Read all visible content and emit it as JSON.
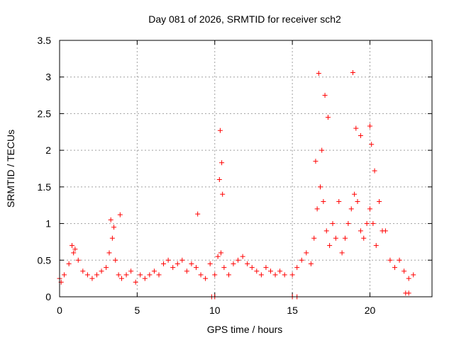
{
  "chart_data": {
    "type": "scatter",
    "title": "Day 081 of 2026, SRMTID for receiver sch2",
    "xlabel": "GPS time / hours",
    "ylabel": "SRMTID / TECUs",
    "xlim": [
      0,
      24
    ],
    "ylim": [
      0,
      3.5
    ],
    "xticks": [
      "0",
      "5",
      "10",
      "15",
      "20"
    ],
    "xtick_values": [
      0,
      5,
      10,
      15,
      20
    ],
    "yticks": [
      "0",
      "0.5",
      "1",
      "1.5",
      "2",
      "2.5",
      "3",
      "3.5"
    ],
    "ytick_values": [
      0,
      0.5,
      1,
      1.5,
      2,
      2.5,
      3,
      3.5
    ],
    "grid": true,
    "marker": "+",
    "marker_color": "#ff0000",
    "series": [
      {
        "name": "sch2",
        "x": [
          0.0,
          0.3,
          0.6,
          0.9,
          1.2,
          1.5,
          1.8,
          2.1,
          2.4,
          2.7,
          3.0,
          3.2,
          3.4,
          3.6,
          3.8,
          4.0,
          4.3,
          4.6,
          4.9,
          5.2,
          5.5,
          5.8,
          6.1,
          6.4,
          6.7,
          7.0,
          7.3,
          7.6,
          7.9,
          8.2,
          8.5,
          8.8,
          9.1,
          9.4,
          9.7,
          10.0,
          10.2,
          10.4,
          10.6,
          10.9,
          11.2,
          11.5,
          11.8,
          12.1,
          12.4,
          12.7,
          13.0,
          13.3,
          13.6,
          13.9,
          14.2,
          14.5,
          15.0,
          15.3,
          15.6,
          15.9,
          16.2,
          16.4,
          16.6,
          16.8,
          17.0,
          17.2,
          17.4,
          17.6,
          17.8,
          18.0,
          18.2,
          18.4,
          18.6,
          18.8,
          19.0,
          19.2,
          19.4,
          19.6,
          19.8,
          20.0,
          20.2,
          20.4,
          20.6,
          20.8,
          21.0,
          21.3,
          21.6,
          21.9,
          22.2,
          22.5,
          22.8,
          0.1,
          0.8,
          1.0,
          3.3,
          3.5,
          3.9,
          8.9,
          10.3,
          10.35,
          10.45,
          10.5,
          16.5,
          16.7,
          16.9,
          17.1,
          17.3,
          18.9,
          19.1,
          19.4,
          20.0,
          20.1,
          20.3,
          9.8,
          10.0,
          15.0,
          15.3,
          22.3,
          22.5
        ],
        "y": [
          0.25,
          0.3,
          0.45,
          0.6,
          0.5,
          0.35,
          0.3,
          0.25,
          0.3,
          0.35,
          0.4,
          0.6,
          0.8,
          0.5,
          0.3,
          0.25,
          0.3,
          0.35,
          0.2,
          0.3,
          0.25,
          0.3,
          0.35,
          0.3,
          0.45,
          0.5,
          0.4,
          0.45,
          0.5,
          0.35,
          0.45,
          0.4,
          0.3,
          0.25,
          0.45,
          0.3,
          0.55,
          0.6,
          0.4,
          0.3,
          0.45,
          0.5,
          0.55,
          0.45,
          0.4,
          0.35,
          0.3,
          0.4,
          0.35,
          0.3,
          0.35,
          0.3,
          0.3,
          0.4,
          0.5,
          0.6,
          0.45,
          0.8,
          1.2,
          1.5,
          1.3,
          0.9,
          0.7,
          1.0,
          0.8,
          1.3,
          0.6,
          0.8,
          1.0,
          1.2,
          1.4,
          1.3,
          0.9,
          0.8,
          1.0,
          1.2,
          1.0,
          0.7,
          1.3,
          0.9,
          0.9,
          0.5,
          0.4,
          0.5,
          0.35,
          0.25,
          0.3,
          0.2,
          0.7,
          0.65,
          1.05,
          0.95,
          1.12,
          1.13,
          1.6,
          2.27,
          1.83,
          1.4,
          1.85,
          3.05,
          2.0,
          2.75,
          2.45,
          3.06,
          2.3,
          2.2,
          2.33,
          2.08,
          1.72,
          0.0,
          0.0,
          0.0,
          0.0,
          0.05,
          0.05
        ]
      }
    ]
  }
}
